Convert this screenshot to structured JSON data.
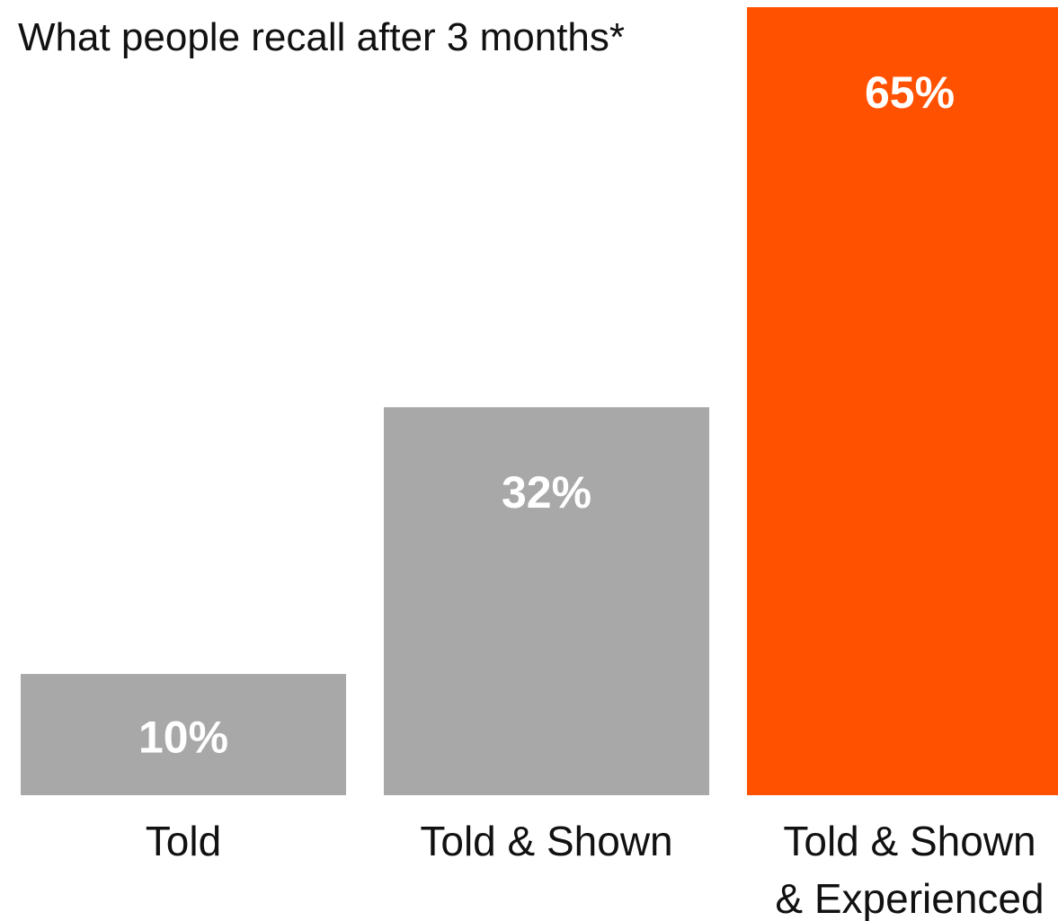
{
  "chart_data": {
    "type": "bar",
    "title": "What people recall after 3 months*",
    "categories": [
      "Told",
      "Told & Shown",
      "Told & Shown & Experienced"
    ],
    "category_label_lines": [
      [
        "Told"
      ],
      [
        "Told & Shown"
      ],
      [
        "Told & Shown",
        "& Experienced"
      ]
    ],
    "values": [
      10,
      32,
      65
    ],
    "value_labels": [
      "10%",
      "32%",
      "65%"
    ],
    "bar_colors": [
      "#a8a8a8",
      "#a8a8a8",
      "#ff5100"
    ],
    "ylim": [
      0,
      65
    ],
    "grid": false,
    "legend": "none"
  }
}
